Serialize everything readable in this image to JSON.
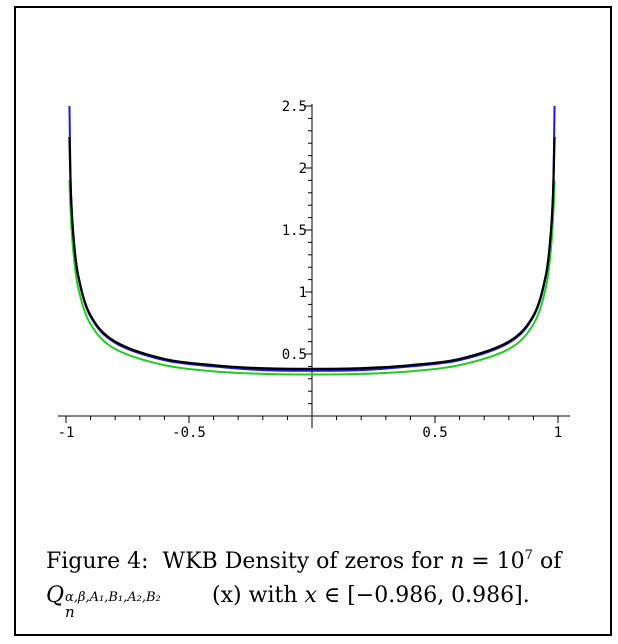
{
  "chart_data": {
    "type": "line",
    "title": "",
    "xlabel": "",
    "ylabel": "",
    "xlim": [
      -1.0,
      1.0
    ],
    "ylim": [
      0,
      2.5
    ],
    "x_ticks": [
      {
        "value": -1,
        "label": "-1"
      },
      {
        "value": -0.5,
        "label": "-0.5"
      },
      {
        "value": 0.5,
        "label": "0.5"
      },
      {
        "value": 1,
        "label": "1"
      }
    ],
    "y_ticks": [
      {
        "value": 0.5,
        "label": "0.5"
      },
      {
        "value": 1,
        "label": "1"
      },
      {
        "value": 1.5,
        "label": "1.5"
      },
      {
        "value": 2,
        "label": "2"
      },
      {
        "value": 2.5,
        "label": "2.5"
      }
    ],
    "grid": false,
    "legend": "none",
    "series": [
      {
        "color": "#22cc22",
        "x": [
          -0.986,
          -0.98,
          -0.97,
          -0.95,
          -0.9,
          -0.8,
          -0.6,
          -0.4,
          -0.2,
          0,
          0.2,
          0.4,
          0.6,
          0.8,
          0.9,
          0.95,
          0.97,
          0.98,
          0.986
        ],
        "y": [
          1.9,
          1.6,
          1.32,
          1.03,
          0.74,
          0.54,
          0.41,
          0.36,
          0.34,
          0.335,
          0.34,
          0.36,
          0.41,
          0.54,
          0.74,
          1.03,
          1.32,
          1.6,
          1.9
        ]
      },
      {
        "color": "#1a1ad8",
        "x": [
          -0.986,
          -0.98,
          -0.97,
          -0.95,
          -0.9,
          -0.8,
          -0.6,
          -0.4,
          -0.2,
          0,
          0.2,
          0.4,
          0.6,
          0.8,
          0.9,
          0.95,
          0.97,
          0.98,
          0.986
        ],
        "y": [
          2.5,
          1.8,
          1.45,
          1.12,
          0.8,
          0.59,
          0.45,
          0.4,
          0.37,
          0.365,
          0.37,
          0.4,
          0.45,
          0.59,
          0.8,
          1.12,
          1.45,
          1.8,
          2.5
        ]
      },
      {
        "color": "#000000",
        "x": [
          -0.986,
          -0.98,
          -0.97,
          -0.95,
          -0.9,
          -0.8,
          -0.6,
          -0.4,
          -0.2,
          0,
          0.2,
          0.4,
          0.6,
          0.8,
          0.9,
          0.95,
          0.97,
          0.98,
          0.986
        ],
        "y": [
          2.25,
          1.8,
          1.46,
          1.13,
          0.81,
          0.6,
          0.46,
          0.41,
          0.385,
          0.38,
          0.385,
          0.41,
          0.46,
          0.6,
          0.81,
          1.13,
          1.46,
          1.8,
          2.25
        ]
      }
    ]
  },
  "caption": {
    "figure_label": "Figure 4:",
    "text_1": "WKB Density of zeros for",
    "n": "n",
    "eq": " = 10",
    "exp": "7",
    "text_2": " of",
    "Q": "Q",
    "sup": "α,β,A₁,B₁,A₂,B₂",
    "sub": "n",
    "arg": "(x)",
    "text_3": " with ",
    "x": "x",
    "in": " ∈ [−0.986, 0.986]."
  }
}
